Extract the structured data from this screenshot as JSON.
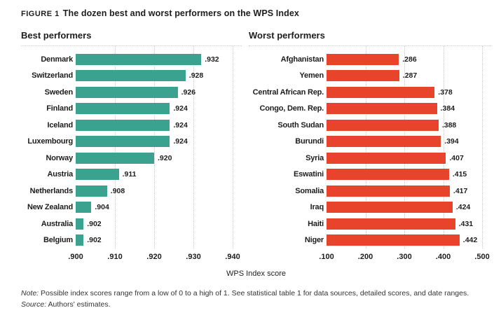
{
  "figure": {
    "label": "FIGURE 1",
    "title": "The dozen best and worst performers on the WPS Index"
  },
  "axis_label": "WPS Index score",
  "footnotes": {
    "note_label": "Note:",
    "note": "Possible index scores range from a low of 0 to a high of 1. See statistical table 1 for data sources, detailed scores, and date ranges.",
    "source_label": "Source:",
    "source": "Authors' estimates."
  },
  "colors": {
    "best": "#3BA28F",
    "worst": "#E8432B",
    "grid": "#C9C9C9",
    "text": "#1D1D1D"
  },
  "chart_data": [
    {
      "type": "bar",
      "orientation": "horizontal",
      "title": "Best performers",
      "color_key": "best",
      "xlabel": "WPS Index score",
      "xlim": [
        0.9,
        0.94
      ],
      "grid": true,
      "tick_labels": [
        ".900",
        ".910",
        ".920",
        ".930",
        ".940"
      ],
      "tick_values": [
        0.9,
        0.91,
        0.92,
        0.93,
        0.94
      ],
      "categories": [
        "Denmark",
        "Switzerland",
        "Sweden",
        "Finland",
        "Iceland",
        "Luxembourg",
        "Norway",
        "Austria",
        "Netherlands",
        "New Zealand",
        "Australia",
        "Belgium"
      ],
      "values": [
        0.932,
        0.928,
        0.926,
        0.924,
        0.924,
        0.924,
        0.92,
        0.911,
        0.908,
        0.904,
        0.902,
        0.902
      ],
      "value_labels": [
        ".932",
        ".928",
        ".926",
        ".924",
        ".924",
        ".924",
        ".920",
        ".911",
        ".908",
        ".904",
        ".902",
        ".902"
      ]
    },
    {
      "type": "bar",
      "orientation": "horizontal",
      "title": "Worst performers",
      "color_key": "worst",
      "xlabel": "WPS Index score",
      "xlim": [
        0.1,
        0.5
      ],
      "grid": true,
      "tick_labels": [
        ".100",
        ".200",
        ".300",
        ".400",
        ".500"
      ],
      "tick_values": [
        0.1,
        0.2,
        0.3,
        0.4,
        0.5
      ],
      "categories": [
        "Afghanistan",
        "Yemen",
        "Central African Rep.",
        "Congo, Dem. Rep.",
        "South Sudan",
        "Burundi",
        "Syria",
        "Eswatini",
        "Somalia",
        "Iraq",
        "Haiti",
        "Niger"
      ],
      "values": [
        0.286,
        0.287,
        0.378,
        0.384,
        0.388,
        0.394,
        0.407,
        0.415,
        0.417,
        0.424,
        0.431,
        0.442
      ],
      "value_labels": [
        ".286",
        ".287",
        ".378",
        ".384",
        ".388",
        ".394",
        ".407",
        ".415",
        ".417",
        ".424",
        ".431",
        ".442"
      ]
    }
  ]
}
